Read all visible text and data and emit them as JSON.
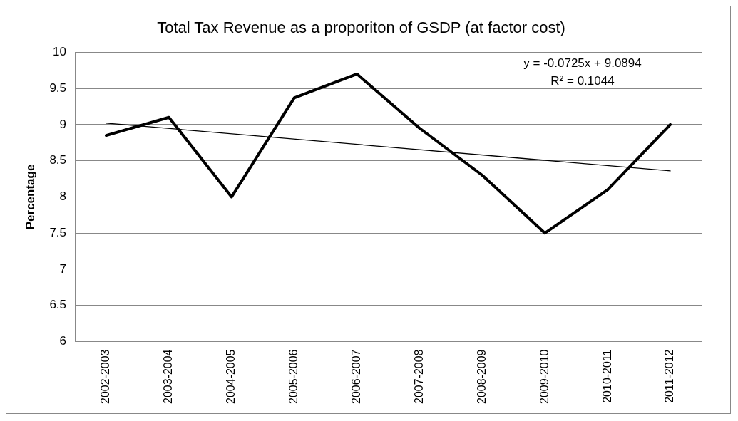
{
  "chart_data": {
    "type": "line",
    "title": "Total Tax Revenue as a proporiton of GSDP (at factor cost)",
    "ylabel": "Percentage",
    "categories": [
      "2002-2003",
      "2003-2004",
      "2004-2005",
      "2005-2006",
      "2006-2007",
      "2007-2008",
      "2008-2009",
      "2009-2010",
      "2010-2011",
      "2011-2012"
    ],
    "series": [
      {
        "color": "#000000",
        "values": [
          8.85,
          9.1,
          8.0,
          9.37,
          9.7,
          8.95,
          8.3,
          7.5,
          8.1,
          9.0
        ]
      },
      {
        "type": "line",
        "color": "#000000",
        "x": [
          "2002-2003",
          "2011-2012"
        ],
        "values": [
          9.02,
          8.36
        ]
      }
    ],
    "ylim": [
      6,
      10
    ],
    "yticks": [
      6,
      6.5,
      7,
      7.5,
      8,
      8.5,
      9,
      9.5,
      10
    ],
    "grid": "y",
    "legend": false,
    "marker": "none",
    "line_style": "solid",
    "annotations": [
      "y = -0.0725x + 9.0894",
      "R² = 0.1044"
    ]
  }
}
